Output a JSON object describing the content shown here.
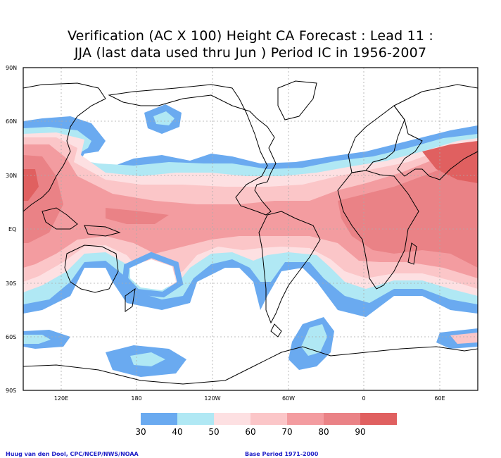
{
  "title": {
    "line1": "Verification (AC X 100) Height CA Forecast : Lead 11 :",
    "line2": "JJA (last data used thru Jun ) Period IC in 1956-2007"
  },
  "map": {
    "lat_labels": [
      "90N",
      "60N",
      "30N",
      "EQ",
      "30S",
      "60S",
      "90S"
    ],
    "lon_labels": [
      "120E",
      "180",
      "120W",
      "60W",
      "0",
      "60E"
    ]
  },
  "legend": {
    "colors": [
      "#6aaaf0",
      "#b0e8f4",
      "#fde0e2",
      "#fbc6c8",
      "#f39ca0",
      "#ea8286",
      "#e06060"
    ],
    "labels": [
      "30",
      "40",
      "50",
      "60",
      "70",
      "80",
      "90"
    ]
  },
  "footer": {
    "left": "Huug van den Dool, CPC/NCEP/NWS/NOAA",
    "right": "Base Period 1971-2000"
  }
}
